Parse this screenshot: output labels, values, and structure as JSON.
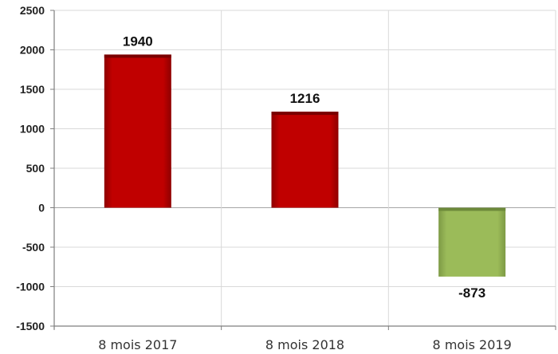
{
  "chart_data": {
    "type": "bar",
    "title": "",
    "xlabel": "",
    "ylabel": "",
    "categories": [
      "8 mois 2017",
      "8 mois 2018",
      "8 mois 2019"
    ],
    "values": [
      1940,
      1216,
      -873
    ],
    "data_labels": [
      "1940",
      "1216",
      "-873"
    ],
    "ylim": [
      -1500,
      2500
    ],
    "yticks": [
      2500,
      2000,
      1500,
      1000,
      500,
      0,
      -500,
      -1000,
      -1500
    ],
    "ytick_labels": [
      "2500",
      "2000",
      "1500",
      "1000",
      "500",
      "0",
      "-500",
      "-1000",
      "-1500"
    ],
    "grid": true,
    "legend": "none",
    "colors": {
      "positive": "#c00000",
      "positive_shade": "#7a0000",
      "negative": "#9bbb59",
      "negative_shade": "#6d8a3a",
      "grid": "#d9d9d9",
      "axis": "#7f7f7f"
    }
  }
}
